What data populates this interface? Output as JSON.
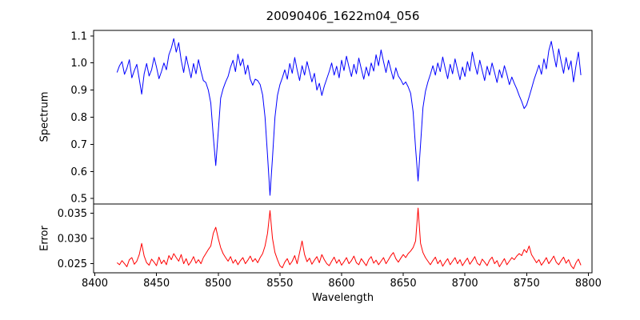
{
  "chart_data": {
    "type": "line",
    "title": "20090406_1622m04_056",
    "xlabel": "Wavelength",
    "xlim": [
      8399,
      8803
    ],
    "xticks": [
      8400,
      8450,
      8500,
      8550,
      8600,
      8650,
      8700,
      8750,
      8800
    ],
    "grid": false,
    "legend": "none",
    "panels": [
      {
        "ylabel": "Spectrum",
        "ylim": [
          0.48,
          1.12
        ],
        "yticks": [
          {
            "v": 0.5,
            "label": "0.5"
          },
          {
            "v": 0.6,
            "label": "0.6"
          },
          {
            "v": 0.7,
            "label": "0.7"
          },
          {
            "v": 0.8,
            "label": "0.8"
          },
          {
            "v": 0.9,
            "label": "0.9"
          },
          {
            "v": 1.0,
            "label": "1.0"
          },
          {
            "v": 1.1,
            "label": "1.1"
          }
        ]
      },
      {
        "ylabel": "Error",
        "ylim": [
          0.0232,
          0.0368
        ],
        "yticks": [
          {
            "v": 0.025,
            "label": "0.025"
          },
          {
            "v": 0.03,
            "label": "0.030"
          },
          {
            "v": 0.035,
            "label": "0.035"
          }
        ]
      }
    ],
    "series": [
      {
        "name": "spectrum",
        "panel": 0,
        "color": "#0000ff",
        "x_start": 8418,
        "x_step": 2,
        "absorption_line_centers": [
          8498,
          8542,
          8662
        ],
        "values": [
          0.965,
          0.99,
          1.005,
          0.958,
          0.98,
          1.012,
          0.945,
          0.972,
          0.995,
          0.94,
          0.885,
          0.96,
          0.998,
          0.952,
          0.975,
          1.02,
          0.985,
          0.942,
          0.968,
          1.0,
          0.975,
          1.03,
          1.055,
          1.09,
          1.04,
          1.075,
          1.01,
          0.965,
          1.025,
          0.985,
          0.945,
          0.998,
          0.96,
          1.012,
          0.97,
          0.935,
          0.928,
          0.9,
          0.852,
          0.73,
          0.622,
          0.745,
          0.87,
          0.905,
          0.93,
          0.95,
          0.985,
          1.01,
          0.968,
          1.032,
          0.99,
          1.015,
          0.958,
          0.992,
          0.94,
          0.918,
          0.94,
          0.935,
          0.92,
          0.882,
          0.8,
          0.66,
          0.512,
          0.65,
          0.8,
          0.88,
          0.92,
          0.945,
          0.975,
          0.94,
          0.998,
          0.962,
          1.02,
          0.975,
          0.935,
          0.99,
          0.955,
          1.005,
          0.968,
          0.93,
          0.962,
          0.9,
          0.925,
          0.88,
          0.915,
          0.942,
          0.968,
          1.0,
          0.955,
          0.988,
          0.945,
          1.01,
          0.972,
          1.025,
          0.985,
          0.95,
          0.995,
          0.96,
          1.018,
          0.978,
          0.94,
          0.985,
          0.952,
          1.0,
          0.97,
          1.03,
          0.99,
          1.048,
          1.005,
          0.965,
          1.01,
          0.975,
          0.94,
          0.982,
          0.952,
          0.938,
          0.92,
          0.93,
          0.912,
          0.888,
          0.82,
          0.685,
          0.565,
          0.7,
          0.835,
          0.895,
          0.93,
          0.958,
          0.99,
          0.955,
          1.0,
          0.968,
          1.022,
          0.98,
          0.942,
          0.995,
          0.96,
          1.015,
          0.975,
          0.938,
          0.985,
          0.95,
          1.005,
          0.97,
          1.04,
          0.995,
          0.958,
          1.01,
          0.972,
          0.935,
          0.988,
          0.955,
          1.0,
          0.965,
          0.928,
          0.975,
          0.945,
          0.99,
          0.958,
          0.92,
          0.948,
          0.925,
          0.905,
          0.88,
          0.858,
          0.832,
          0.845,
          0.875,
          0.905,
          0.938,
          0.965,
          0.992,
          0.958,
          1.015,
          0.978,
          1.045,
          1.08,
          1.03,
          0.985,
          1.052,
          1.005,
          0.962,
          1.02,
          0.975,
          1.008,
          0.93,
          0.99,
          1.04,
          0.955
        ]
      },
      {
        "name": "error",
        "panel": 1,
        "color": "#ff0000",
        "x_start": 8418,
        "x_step": 2,
        "values": [
          0.0252,
          0.0248,
          0.0256,
          0.025,
          0.0244,
          0.0258,
          0.0262,
          0.0249,
          0.0255,
          0.0268,
          0.029,
          0.0265,
          0.0252,
          0.0247,
          0.0259,
          0.0253,
          0.0246,
          0.0263,
          0.025,
          0.0257,
          0.0248,
          0.0266,
          0.0258,
          0.027,
          0.0262,
          0.0255,
          0.0268,
          0.025,
          0.026,
          0.0247,
          0.0254,
          0.0264,
          0.0251,
          0.0258,
          0.025,
          0.0262,
          0.027,
          0.0278,
          0.0285,
          0.031,
          0.0322,
          0.03,
          0.0282,
          0.027,
          0.0262,
          0.0255,
          0.0264,
          0.0251,
          0.0258,
          0.0248,
          0.0256,
          0.0262,
          0.025,
          0.0257,
          0.0265,
          0.0254,
          0.026,
          0.0252,
          0.0262,
          0.027,
          0.0285,
          0.031,
          0.0355,
          0.03,
          0.0272,
          0.0258,
          0.0246,
          0.0242,
          0.0253,
          0.026,
          0.0248,
          0.0255,
          0.0266,
          0.025,
          0.0272,
          0.0295,
          0.0268,
          0.0254,
          0.0261,
          0.0249,
          0.0257,
          0.0264,
          0.0252,
          0.0268,
          0.0258,
          0.025,
          0.0246,
          0.0255,
          0.0263,
          0.0251,
          0.0258,
          0.0247,
          0.0254,
          0.0262,
          0.025,
          0.0256,
          0.0265,
          0.0252,
          0.0248,
          0.026,
          0.0253,
          0.0246,
          0.0258,
          0.0264,
          0.0251,
          0.0257,
          0.0248,
          0.0255,
          0.0262,
          0.025,
          0.0258,
          0.0266,
          0.0272,
          0.026,
          0.0253,
          0.0261,
          0.0268,
          0.0262,
          0.027,
          0.0275,
          0.0282,
          0.0295,
          0.036,
          0.029,
          0.0272,
          0.0262,
          0.0255,
          0.0248,
          0.0256,
          0.0263,
          0.025,
          0.0257,
          0.0245,
          0.0253,
          0.026,
          0.0248,
          0.0255,
          0.0262,
          0.025,
          0.0258,
          0.0246,
          0.0254,
          0.0261,
          0.0249,
          0.0256,
          0.0264,
          0.0251,
          0.0247,
          0.0259,
          0.0253,
          0.0246,
          0.0257,
          0.0263,
          0.025,
          0.0256,
          0.0244,
          0.0252,
          0.026,
          0.0248,
          0.0255,
          0.0262,
          0.0258,
          0.0265,
          0.027,
          0.0266,
          0.0278,
          0.0272,
          0.0285,
          0.0268,
          0.026,
          0.0252,
          0.0258,
          0.0247,
          0.0254,
          0.0262,
          0.025,
          0.0257,
          0.0265,
          0.0253,
          0.0248,
          0.0256,
          0.0263,
          0.0251,
          0.0258,
          0.0246,
          0.024,
          0.0252,
          0.0259,
          0.0247
        ]
      }
    ]
  }
}
